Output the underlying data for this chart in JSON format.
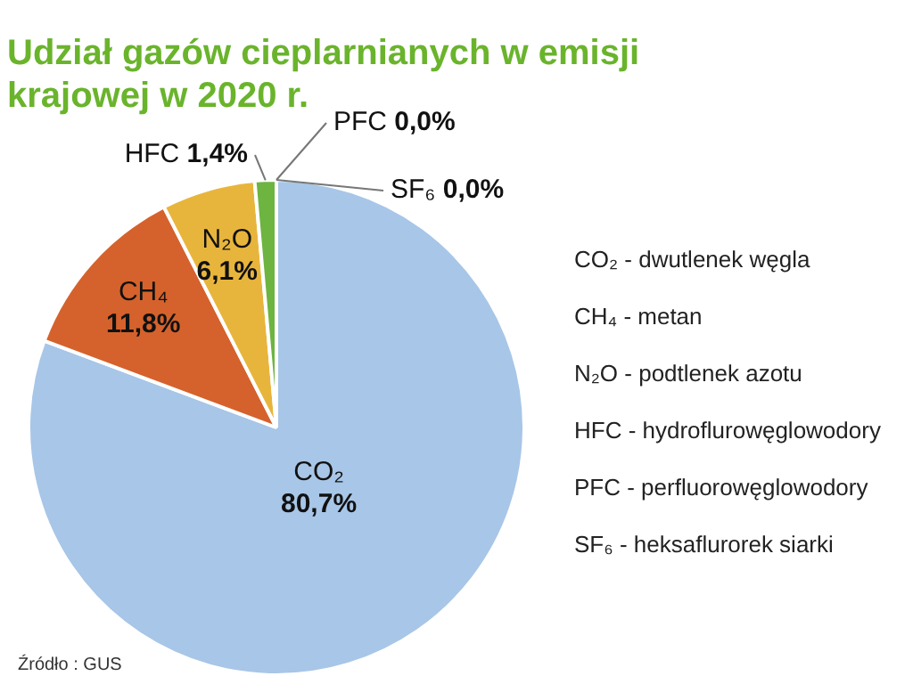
{
  "chart_data": {
    "type": "pie",
    "title": "Udział gazów cieplarnianych w emisji krajowej w 2020 r.",
    "categories": [
      "CO₂",
      "CH₄",
      "N₂O",
      "HFC",
      "PFC",
      "SF₆"
    ],
    "values": [
      80.7,
      11.8,
      6.1,
      1.4,
      0.0,
      0.0
    ],
    "value_labels": [
      "80,7%",
      "11,8%",
      "6,1%",
      "1,4%",
      "0,0%",
      "0,0%"
    ],
    "colors": [
      "#a8c6e7",
      "#d5622c",
      "#e8b53c",
      "#6db441",
      "#9a9a9a",
      "#b4bce4"
    ],
    "annotations": [
      "CO₂ - dwutlenek węgla",
      "CH₄ - metan",
      "N₂O - podtlenek azotu",
      "HFC - hydroflurowęglowodory",
      "PFC - perfluorowęglowodory",
      "SF₆ - heksaflurorek siarki",
      "Źródło : GUS"
    ]
  }
}
